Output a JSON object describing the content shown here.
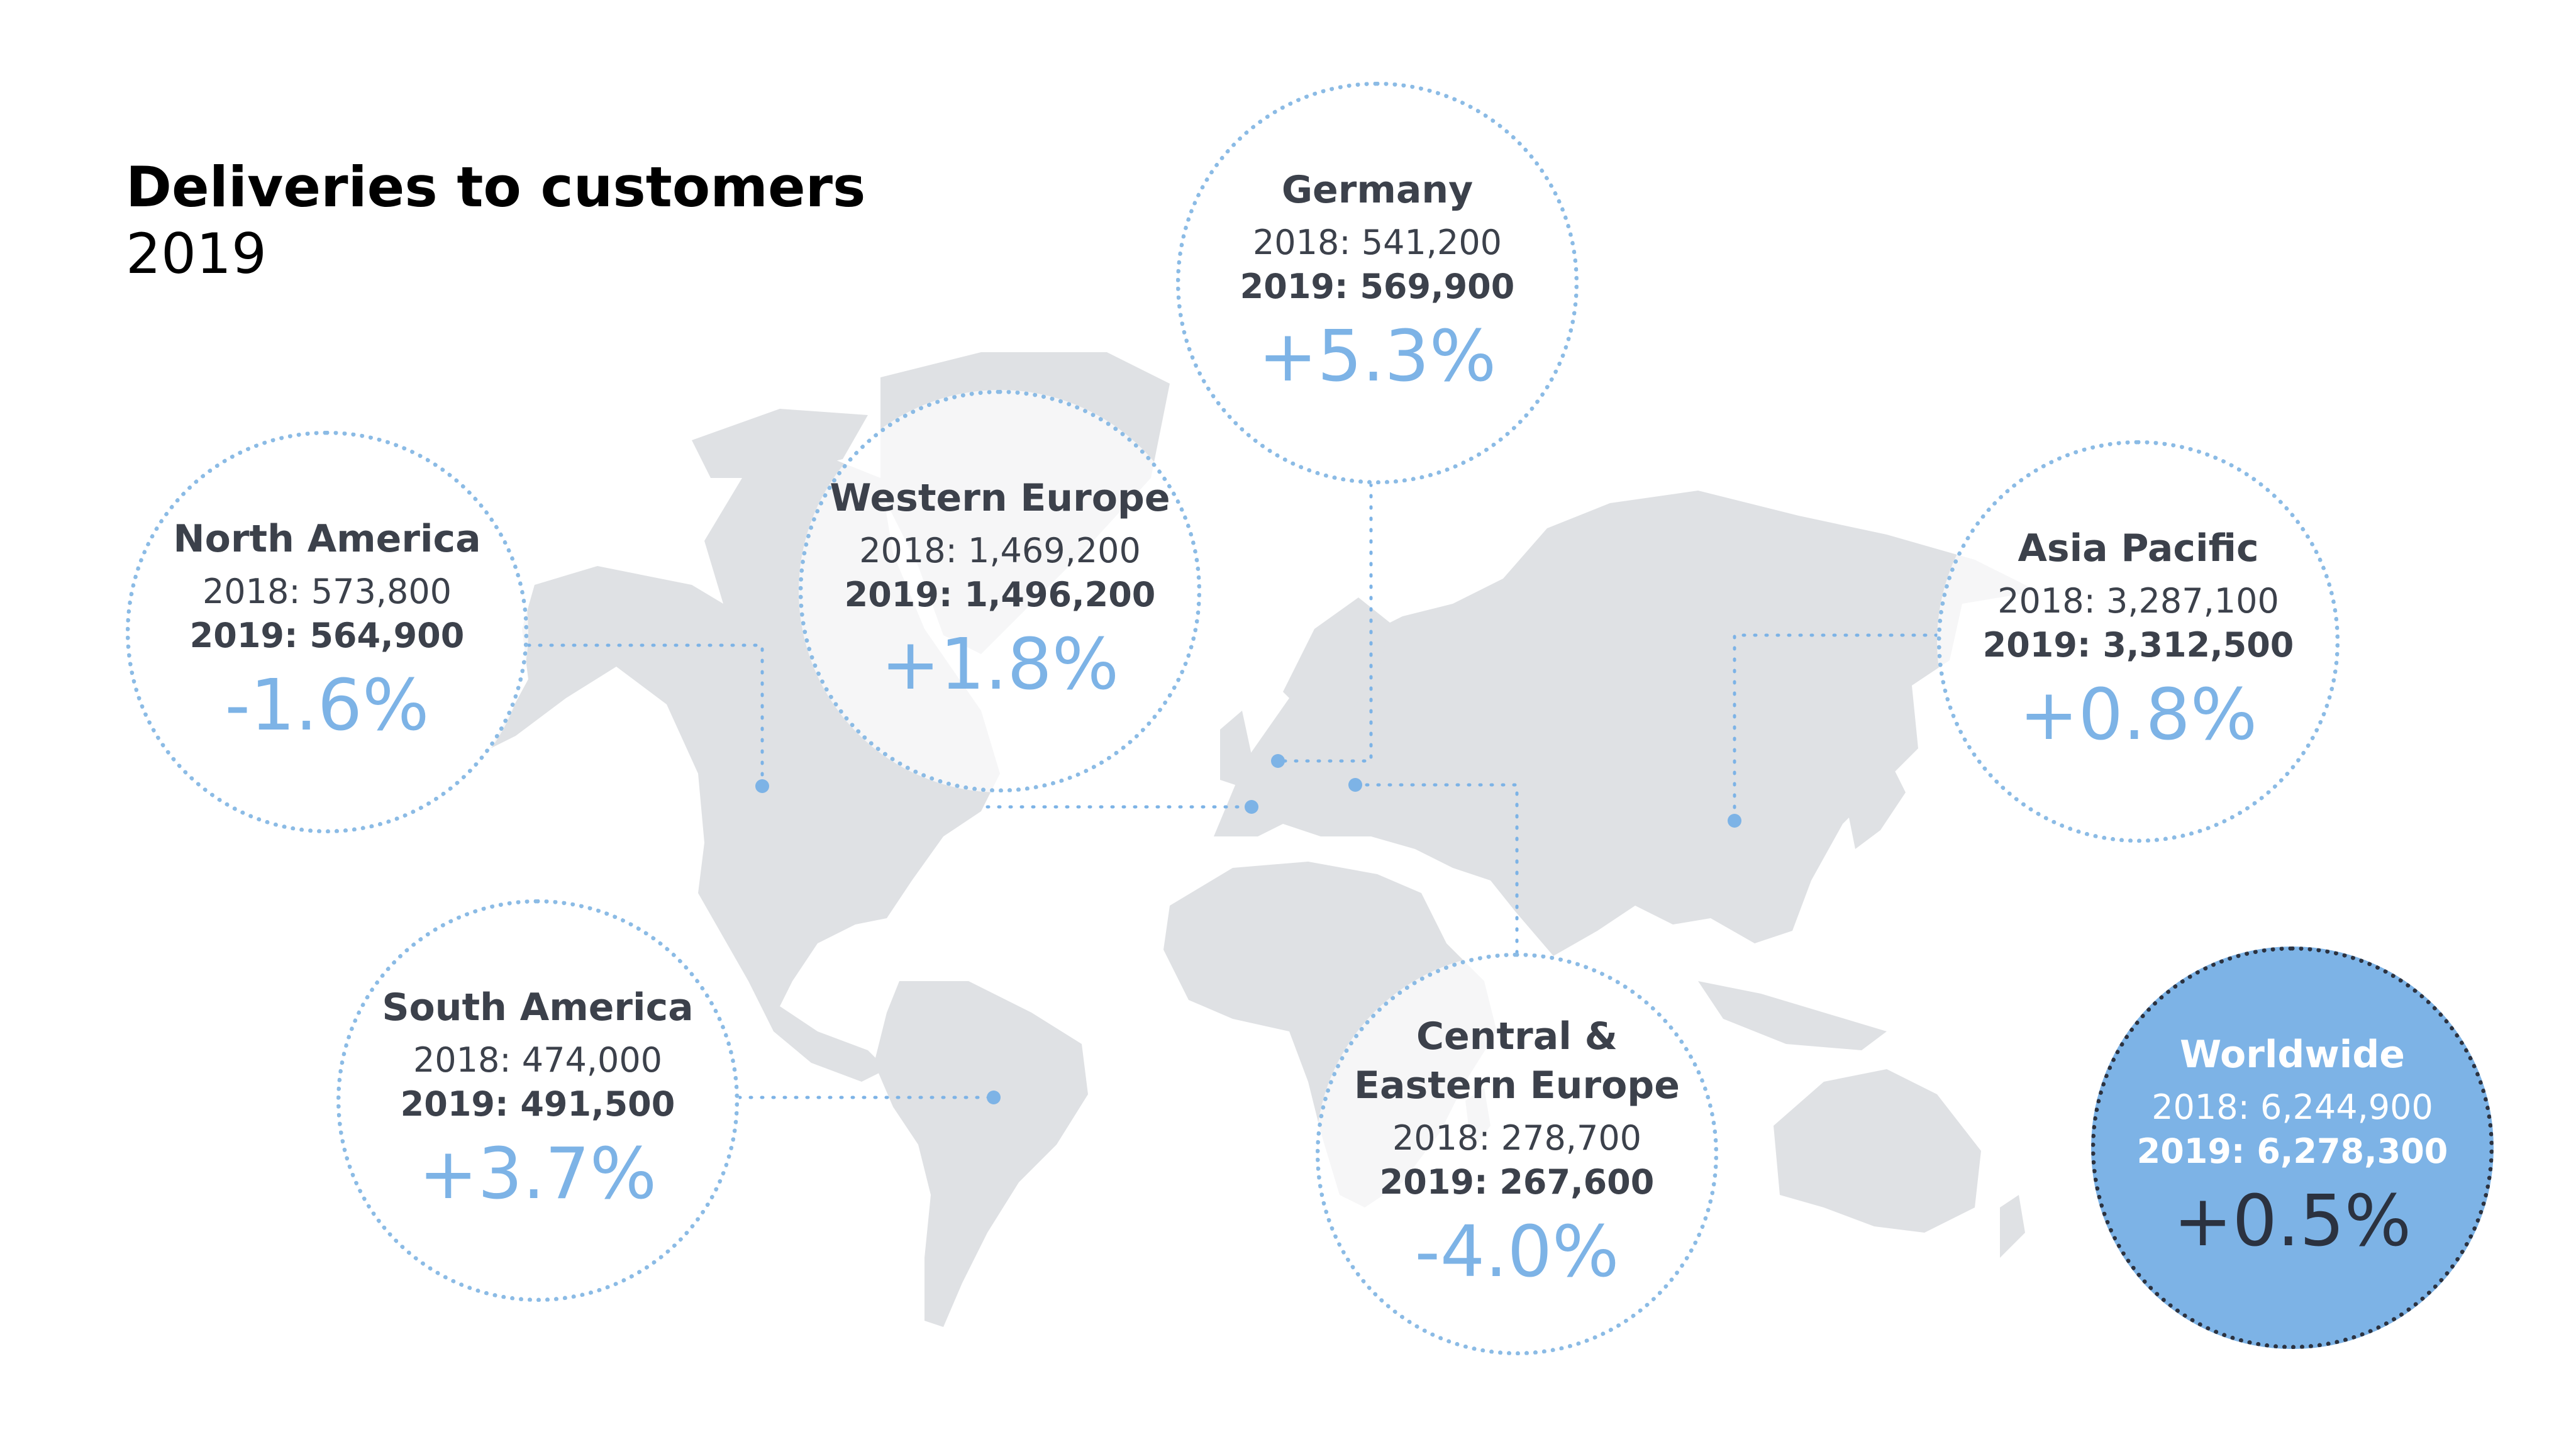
{
  "title": "Deliveries to customers",
  "subtitle": "2019",
  "colors": {
    "accent": "#7db3e6",
    "land": "#dfe1e4",
    "dotted_border": "#8bbbe5",
    "text": "#3c414b",
    "worldwide_fill": "#7db3e6",
    "worldwide_border": "#2b3240"
  },
  "regions": {
    "north_america": {
      "name": "North America",
      "y2018": "2018: 573,800",
      "y2019": "2019: 564,900",
      "change": "-1.6%"
    },
    "western_europe": {
      "name": "Western Europe",
      "y2018": "2018: 1,469,200",
      "y2019": "2019: 1,496,200",
      "change": "+1.8%"
    },
    "germany": {
      "name": "Germany",
      "y2018": "2018: 541,200",
      "y2019": "2019: 569,900",
      "change": "+5.3%"
    },
    "asia_pacific": {
      "name": "Asia Pacific",
      "y2018": "2018: 3,287,100",
      "y2019": "2019: 3,312,500",
      "change": "+0.8%"
    },
    "south_america": {
      "name": "South America",
      "y2018": "2018: 474,000",
      "y2019": "2019: 491,500",
      "change": "+3.7%"
    },
    "central_eastern_europe": {
      "name_line1": "Central &",
      "name_line2": "Eastern Europe",
      "y2018": "2018: 278,700",
      "y2019": "2019: 267,600",
      "change": "-4.0%"
    },
    "worldwide": {
      "name": "Worldwide",
      "y2018": "2018: 6,244,900",
      "y2019": "2019: 6,278,300",
      "change": "+0.5%"
    }
  }
}
